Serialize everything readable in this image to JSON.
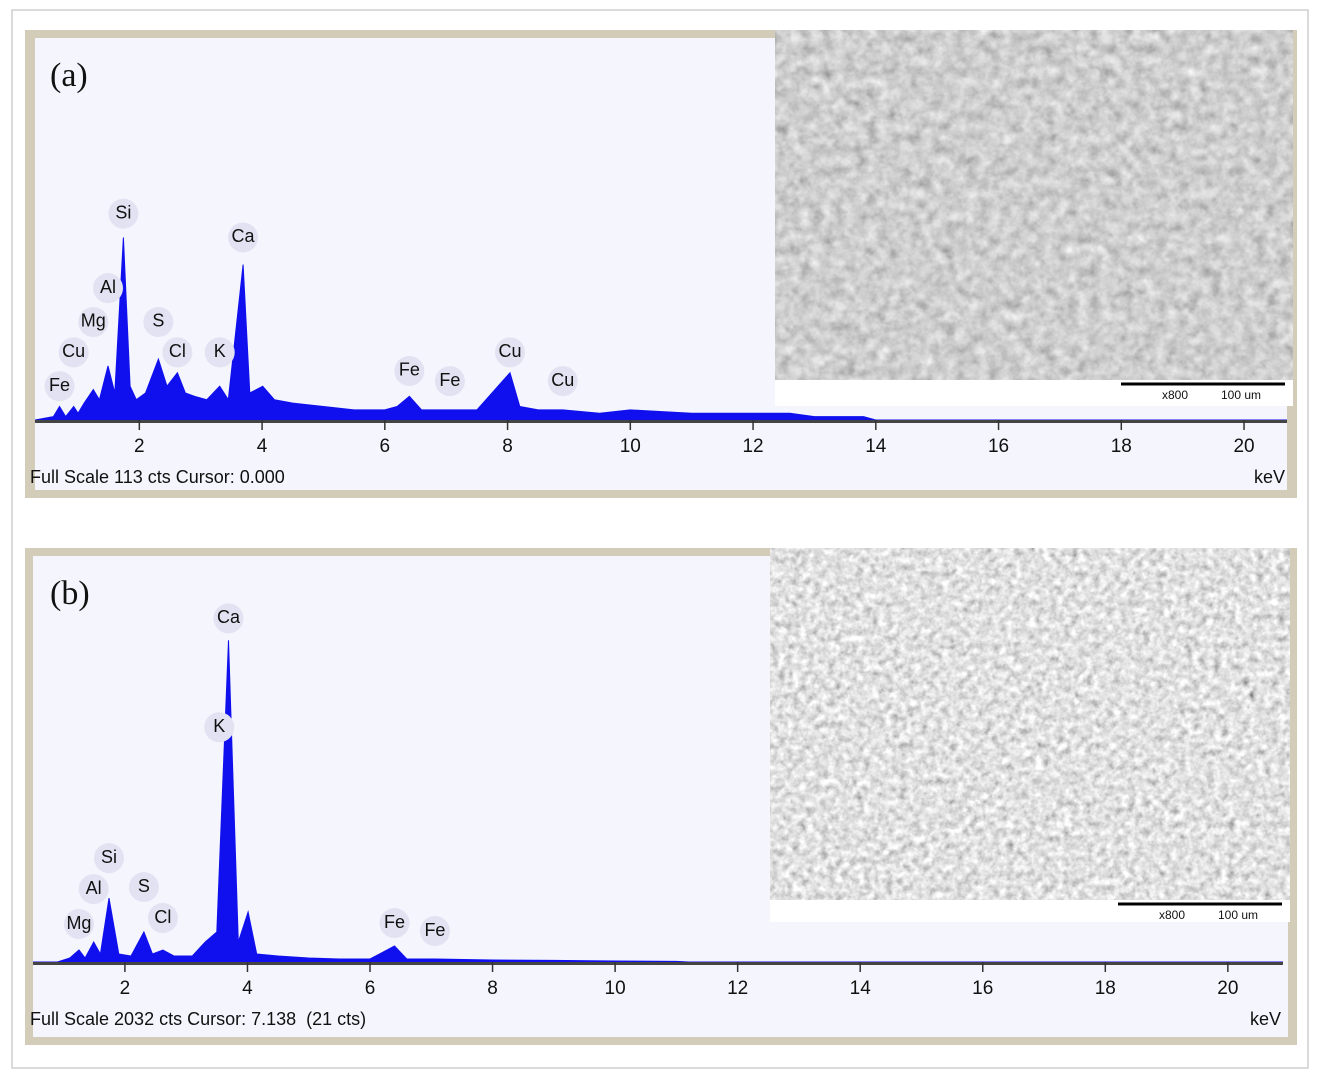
{
  "chart_data": [
    {
      "type": "area",
      "panel_label": "(a)",
      "color": "#1010ee",
      "x": [
        0.3,
        0.6,
        0.7,
        0.8,
        0.93,
        1.0,
        1.1,
        1.25,
        1.35,
        1.49,
        1.6,
        1.74,
        1.85,
        1.95,
        2.1,
        2.31,
        2.45,
        2.62,
        2.75,
        2.9,
        3.1,
        3.31,
        3.45,
        3.69,
        3.8,
        4.01,
        4.2,
        4.5,
        5.0,
        5.5,
        6.0,
        6.2,
        6.4,
        6.6,
        7.06,
        7.5,
        8.04,
        8.2,
        8.5,
        8.9,
        9.5,
        10.0,
        11.0,
        12.0,
        12.6,
        13.0,
        13.8,
        14.0,
        20.7
      ],
      "values": [
        0,
        1,
        4,
        1,
        4,
        2,
        5,
        9,
        6,
        16,
        8,
        54,
        10,
        6,
        8,
        18,
        10,
        14,
        8,
        7,
        6,
        10,
        6,
        46,
        8,
        10,
        6,
        5,
        4,
        3,
        3,
        4,
        7,
        3,
        3,
        3,
        14,
        4,
        3,
        3,
        2,
        3,
        2,
        2,
        2,
        1,
        1,
        0,
        0
      ],
      "xlim": [
        0.3,
        20.7
      ],
      "ylim": [
        0,
        113
      ],
      "xticks": [
        2,
        4,
        6,
        8,
        10,
        12,
        14,
        16,
        18,
        20
      ],
      "xlabel": "keV",
      "footer": "Full Scale 113 cts Cursor: 0.000",
      "peak_labels": [
        {
          "text": "Fe",
          "x": 0.7,
          "y": 10
        },
        {
          "text": "Cu",
          "x": 0.93,
          "y": 20
        },
        {
          "text": "Mg",
          "x": 1.25,
          "y": 29
        },
        {
          "text": "Al",
          "x": 1.49,
          "y": 39
        },
        {
          "text": "Si",
          "x": 1.74,
          "y": 61
        },
        {
          "text": "S",
          "x": 2.31,
          "y": 29
        },
        {
          "text": "Cl",
          "x": 2.62,
          "y": 20
        },
        {
          "text": "K",
          "x": 3.31,
          "y": 20
        },
        {
          "text": "Ca",
          "x": 3.69,
          "y": 54
        },
        {
          "text": "Fe",
          "x": 6.4,
          "y": 14.5
        },
        {
          "text": "Fe",
          "x": 7.06,
          "y": 11.5
        },
        {
          "text": "Cu",
          "x": 8.04,
          "y": 20
        },
        {
          "text": "Cu",
          "x": 8.9,
          "y": 11.5
        }
      ],
      "image_magnification": "x800",
      "image_scale": "100 um"
    },
    {
      "type": "area",
      "panel_label": "(b)",
      "color": "#1010ee",
      "x": [
        0.5,
        0.9,
        1.1,
        1.25,
        1.35,
        1.49,
        1.6,
        1.74,
        1.9,
        2.1,
        2.31,
        2.45,
        2.62,
        2.8,
        3.1,
        3.31,
        3.5,
        3.69,
        3.85,
        4.01,
        4.15,
        4.5,
        5.0,
        5.5,
        6.0,
        6.4,
        6.6,
        7.06,
        8.0,
        9.0,
        10.0,
        11.0,
        11.2,
        20.9
      ],
      "values": [
        0,
        0,
        20,
        60,
        20,
        100,
        40,
        320,
        40,
        30,
        150,
        40,
        60,
        30,
        30,
        100,
        150,
        1610,
        100,
        250,
        40,
        30,
        20,
        15,
        15,
        80,
        15,
        15,
        10,
        8,
        5,
        3,
        0,
        0
      ],
      "xlim": [
        0.5,
        20.9
      ],
      "ylim": [
        0,
        2032
      ],
      "xticks": [
        2,
        4,
        6,
        8,
        10,
        12,
        14,
        16,
        18,
        20
      ],
      "xlabel": "keV",
      "footer": "Full Scale 2032 cts Cursor: 7.138  (21 cts)",
      "peak_labels": [
        {
          "text": "Mg",
          "x": 1.25,
          "y": 190
        },
        {
          "text": "Al",
          "x": 1.49,
          "y": 365
        },
        {
          "text": "Si",
          "x": 1.74,
          "y": 520
        },
        {
          "text": "S",
          "x": 2.31,
          "y": 375
        },
        {
          "text": "Cl",
          "x": 2.62,
          "y": 220
        },
        {
          "text": "K",
          "x": 3.54,
          "y": 1175
        },
        {
          "text": "Ca",
          "x": 3.69,
          "y": 1720
        },
        {
          "text": "Fe",
          "x": 6.4,
          "y": 195
        },
        {
          "text": "Fe",
          "x": 7.06,
          "y": 155
        }
      ],
      "image_magnification": "x800",
      "image_scale": "100 um"
    }
  ]
}
